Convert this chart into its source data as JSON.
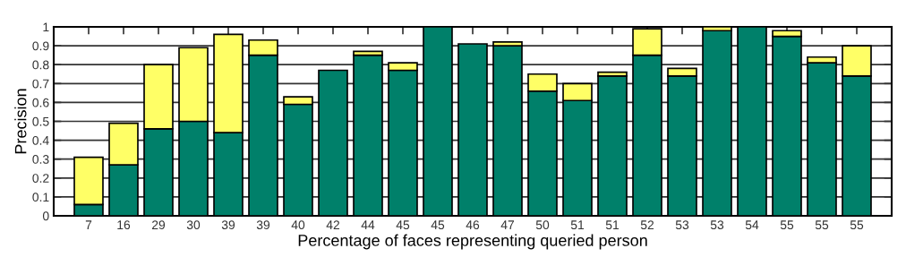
{
  "chart_data": {
    "type": "bar",
    "stacked": true,
    "xlabel": "Percentage of faces representing queried person",
    "ylabel": "Precision",
    "categories": [
      "7",
      "16",
      "29",
      "30",
      "39",
      "39",
      "40",
      "42",
      "44",
      "45",
      "45",
      "46",
      "47",
      "50",
      "51",
      "51",
      "52",
      "53",
      "53",
      "54",
      "55",
      "55",
      "55"
    ],
    "series": [
      {
        "color": "#00806a",
        "values": [
          0.06,
          0.27,
          0.46,
          0.5,
          0.44,
          0.85,
          0.59,
          0.77,
          0.85,
          0.77,
          1.0,
          0.91,
          0.9,
          0.66,
          0.61,
          0.74,
          0.85,
          0.74,
          0.98,
          1.0,
          0.95,
          0.81,
          0.74
        ]
      },
      {
        "color": "#ffff66",
        "values": [
          0.25,
          0.22,
          0.34,
          0.39,
          0.52,
          0.08,
          0.04,
          null,
          0.02,
          0.04,
          null,
          null,
          0.02,
          0.09,
          0.09,
          0.02,
          0.14,
          0.04,
          0.02,
          null,
          0.03,
          0.03,
          0.16
        ]
      }
    ],
    "ylim": [
      0,
      1
    ],
    "yticks": [
      0,
      0.1,
      0.2,
      0.3,
      0.4,
      0.5,
      0.6,
      0.7,
      0.8,
      0.9,
      1
    ],
    "grid": "y",
    "legend": false
  }
}
